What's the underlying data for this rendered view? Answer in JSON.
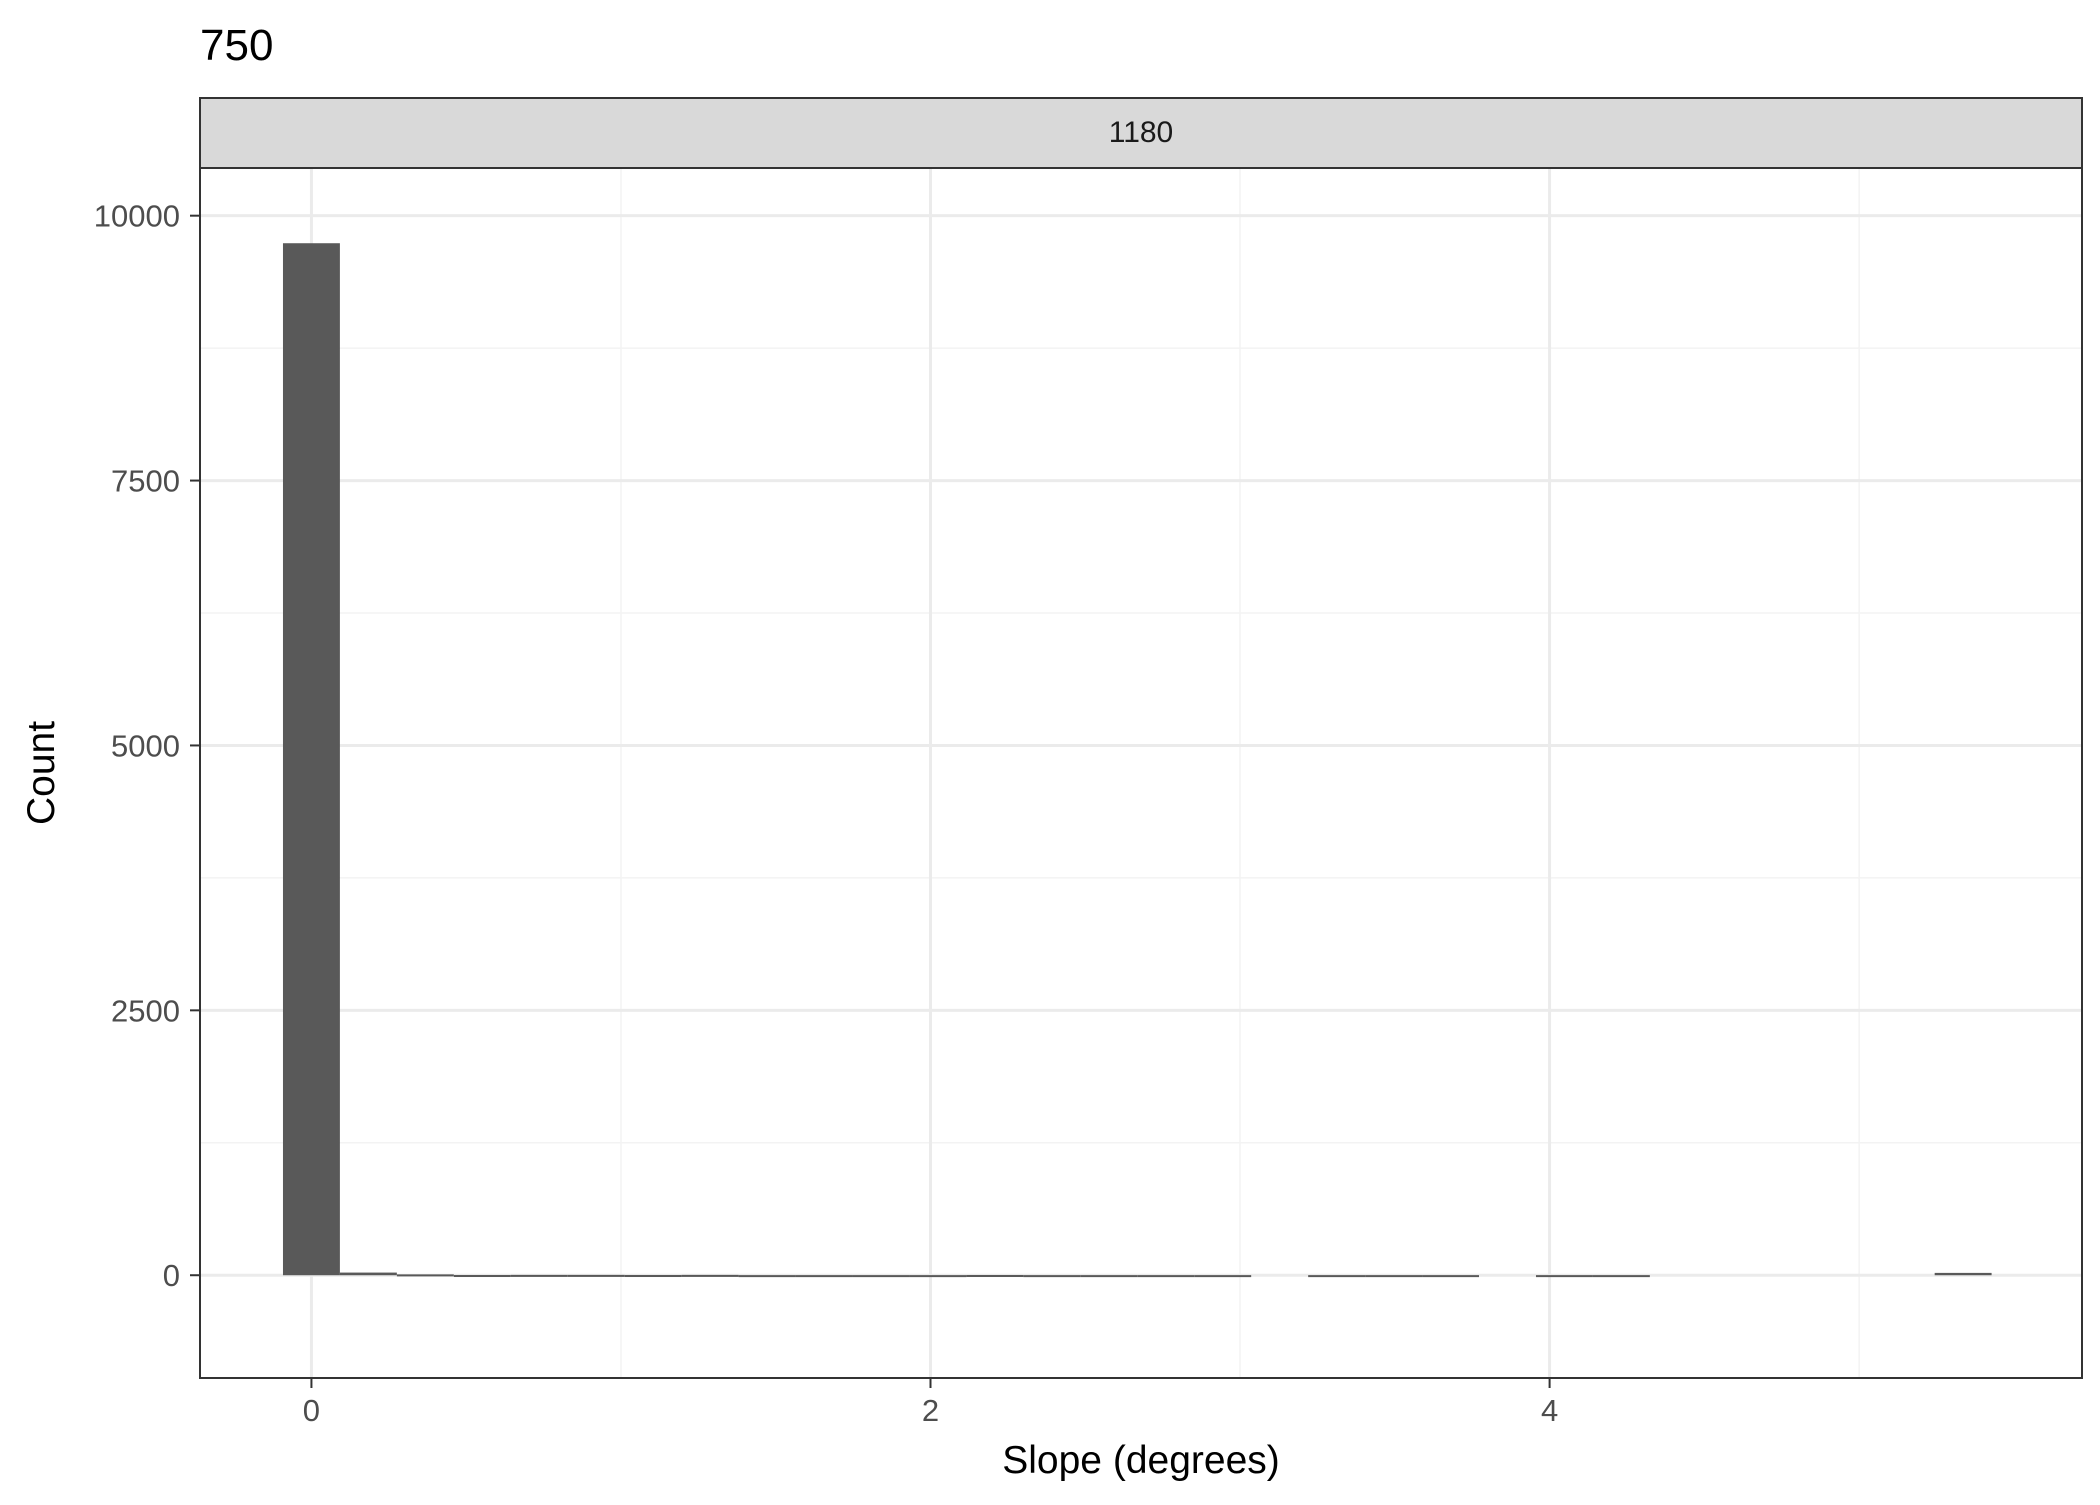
{
  "chart_data": {
    "type": "bar",
    "title": "750",
    "facet_label": "1180",
    "xlabel": "Slope (degrees)",
    "ylabel": "Count",
    "xlim": [
      -0.36,
      5.72
    ],
    "ylim": [
      -970,
      10450
    ],
    "x_ticks": [
      0,
      2,
      4
    ],
    "y_ticks": [
      0,
      2500,
      5000,
      7500,
      10000
    ],
    "y_minor_ticks": [
      1250,
      3750,
      6250,
      8750
    ],
    "x_minor_ticks": [
      1,
      3,
      5
    ],
    "grid": true,
    "bin_width": 0.1839,
    "bins": [
      {
        "x": 0.0,
        "count": 9740
      },
      {
        "x": 0.184,
        "count": 25
      },
      {
        "x": 0.368,
        "count": 8
      },
      {
        "x": 0.552,
        "count": 2
      },
      {
        "x": 0.736,
        "count": 3
      },
      {
        "x": 0.92,
        "count": 3
      },
      {
        "x": 1.104,
        "count": 2
      },
      {
        "x": 1.288,
        "count": 3
      },
      {
        "x": 1.472,
        "count": 1
      },
      {
        "x": 1.656,
        "count": 1
      },
      {
        "x": 1.84,
        "count": 1
      },
      {
        "x": 2.024,
        "count": 1
      },
      {
        "x": 2.208,
        "count": 2
      },
      {
        "x": 2.392,
        "count": 1
      },
      {
        "x": 2.576,
        "count": 1
      },
      {
        "x": 2.76,
        "count": 1
      },
      {
        "x": 2.944,
        "count": 1
      },
      {
        "x": 3.128,
        "count": 0
      },
      {
        "x": 3.312,
        "count": 1
      },
      {
        "x": 3.496,
        "count": 1
      },
      {
        "x": 3.68,
        "count": 1
      },
      {
        "x": 3.864,
        "count": 0
      },
      {
        "x": 4.048,
        "count": 1
      },
      {
        "x": 4.232,
        "count": 1
      },
      {
        "x": 4.416,
        "count": 0
      },
      {
        "x": 4.6,
        "count": 0
      },
      {
        "x": 4.784,
        "count": 0
      },
      {
        "x": 4.968,
        "count": 0
      },
      {
        "x": 5.152,
        "count": 0
      },
      {
        "x": 5.336,
        "count": 22
      }
    ]
  },
  "colors": {
    "bar": "#595959",
    "grid_major": "#ebebeb",
    "grid_minor": "#f3f3f3",
    "panel_border": "#333333",
    "strip_fill": "#d9d9d9",
    "tick_text": "#4d4d4d",
    "axis_title": "#000000"
  }
}
